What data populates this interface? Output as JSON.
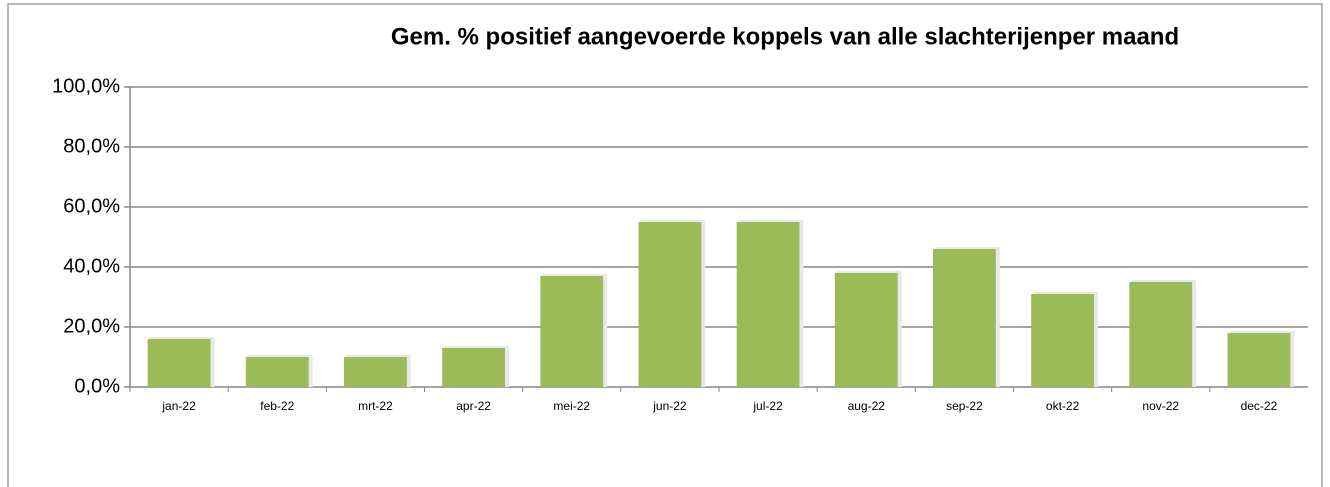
{
  "chart_data": {
    "type": "bar",
    "title": "Gem. % positief aangevoerde koppels  van alle slachterijenper maand",
    "categories": [
      "jan-22",
      "feb-22",
      "mrt-22",
      "apr-22",
      "mei-22",
      "jun-22",
      "jul-22",
      "aug-22",
      "sep-22",
      "okt-22",
      "nov-22",
      "dec-22"
    ],
    "values": [
      16,
      10,
      10,
      13,
      37,
      55,
      55,
      38,
      46,
      31,
      35,
      18
    ],
    "color": "#9bbb59",
    "ylim": [
      0,
      100
    ],
    "yticks": [
      {
        "value": 0,
        "label": "0,0%"
      },
      {
        "value": 20,
        "label": "20,0%"
      },
      {
        "value": 40,
        "label": "40,0%"
      },
      {
        "value": 60,
        "label": "60,0%"
      },
      {
        "value": 80,
        "label": "80,0%"
      },
      {
        "value": 100,
        "label": "100,0%"
      }
    ],
    "grid": true
  }
}
